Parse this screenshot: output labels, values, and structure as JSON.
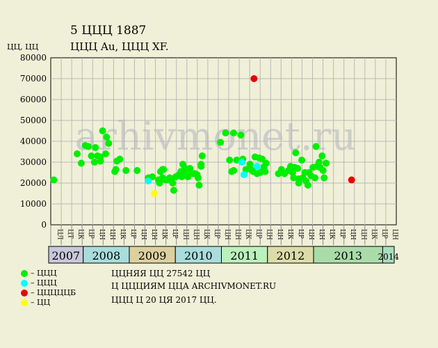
{
  "header": {
    "title": "5 ЦЦЦ 1887",
    "subtitle": "ЦЦЦ  Au, ЦЦЦ  XF."
  },
  "notes": [
    "ЦЦНЯЯ ЦЦ 27542 ЦЦ",
    "Ц ЦЦЦИЯМ ЦЦА ARCHIVMONET.RU",
    "ЦЦЦ Ц 20 ЦЯ 2017 ЦЦ."
  ],
  "legend": [
    {
      "label": "– ЦЦЦ",
      "color": "#00ee00"
    },
    {
      "label": "– ЦЦЦ",
      "color": "#00ffff"
    },
    {
      "label": "– ЦЦЦЦЦБ",
      "color": "#ee0000"
    },
    {
      "label": "– ЦЦ",
      "color": "#ffff00"
    }
  ],
  "watermark": "arhivmonet.ru",
  "chart_data": {
    "type": "scatter",
    "title": "5 ЦЦЦ 1887",
    "ylabel": "ЦЦ, ЦЦ",
    "ylim": [
      0,
      80000
    ],
    "yticks": [
      0,
      10000,
      20000,
      30000,
      40000,
      50000,
      60000,
      70000,
      80000
    ],
    "grid": true,
    "xlim": [
      0,
      34
    ],
    "months": [
      "ЦЛ",
      "ЦТ",
      "ЦК",
      "ЦР",
      "ЦН",
      "ЦН",
      "ЦК",
      "ЦР",
      "ЦН",
      "ЦН",
      "ЦК",
      "ЦР",
      "ЦН",
      "ЦН",
      "ЦК",
      "ЦР",
      "ЦН",
      "ЦН",
      "ЦК",
      "ЦР",
      "ЦН",
      "ЦН",
      "ЦК",
      "ЦР",
      "ЦН",
      "ЦН",
      "ЦК",
      "ЦР",
      "ЦН",
      "ЦН",
      "ЦК",
      "ЦР",
      "ЦН"
    ],
    "years": [
      {
        "label": "2007",
        "start": 0,
        "end": 3,
        "color": "#c8c8dc"
      },
      {
        "label": "2008",
        "start": 3,
        "end": 7,
        "color": "#aadcdc"
      },
      {
        "label": "2009",
        "start": 7,
        "end": 11,
        "color": "#dcd0a0"
      },
      {
        "label": "2010",
        "start": 11,
        "end": 15,
        "color": "#aadcdc"
      },
      {
        "label": "2011",
        "start": 15,
        "end": 19,
        "color": "#bcf0bc"
      },
      {
        "label": "2012",
        "start": 19,
        "end": 23,
        "color": "#dcdcaa"
      },
      {
        "label": "2013",
        "start": 23,
        "end": 29,
        "color": "#aadcaa"
      },
      {
        "label": "2014",
        "start": 29,
        "end": 30,
        "color": "#aadcbe"
      }
    ],
    "series": [
      {
        "color": "#00ee00",
        "points": [
          [
            0.3,
            21500
          ],
          [
            2.6,
            34000
          ],
          [
            3.0,
            29500
          ],
          [
            3.4,
            38000
          ],
          [
            3.7,
            37500
          ],
          [
            4.0,
            33000
          ],
          [
            4.3,
            30000
          ],
          [
            4.4,
            37000
          ],
          [
            4.6,
            33000
          ],
          [
            4.9,
            32500
          ],
          [
            4.9,
            30500
          ],
          [
            5.1,
            45000
          ],
          [
            5.4,
            34000
          ],
          [
            5.5,
            42000
          ],
          [
            5.7,
            39000
          ],
          [
            6.3,
            25500
          ],
          [
            6.4,
            26500
          ],
          [
            6.5,
            30500
          ],
          [
            6.8,
            31500
          ],
          [
            7.4,
            26000
          ],
          [
            8.5,
            26000
          ],
          [
            9.6,
            22500
          ],
          [
            10.0,
            23000
          ],
          [
            10.6,
            21500
          ],
          [
            10.7,
            20000
          ],
          [
            10.8,
            25500
          ],
          [
            11.0,
            22500
          ],
          [
            11.0,
            26500
          ],
          [
            11.1,
            26500
          ],
          [
            11.3,
            21500
          ],
          [
            11.5,
            21500
          ],
          [
            11.7,
            22500
          ],
          [
            11.9,
            21500
          ],
          [
            12.1,
            16500
          ],
          [
            12.0,
            20000
          ],
          [
            12.3,
            23000
          ],
          [
            12.5,
            23500
          ],
          [
            12.7,
            24000
          ],
          [
            12.8,
            25500
          ],
          [
            12.9,
            23000
          ],
          [
            13.0,
            29000
          ],
          [
            13.1,
            26000
          ],
          [
            13.2,
            27000
          ],
          [
            13.3,
            24000
          ],
          [
            13.5,
            23000
          ],
          [
            13.6,
            26000
          ],
          [
            13.7,
            27000
          ],
          [
            13.8,
            25000
          ],
          [
            14.0,
            24500
          ],
          [
            14.2,
            24500
          ],
          [
            14.4,
            24000
          ],
          [
            14.5,
            22500
          ],
          [
            14.6,
            19000
          ],
          [
            14.8,
            29000
          ],
          [
            14.9,
            33000
          ],
          [
            14.8,
            28000
          ],
          [
            16.7,
            39500
          ],
          [
            17.2,
            44000
          ],
          [
            17.6,
            31000
          ],
          [
            17.8,
            25500
          ],
          [
            18.0,
            44000
          ],
          [
            18.0,
            26000
          ],
          [
            18.3,
            31000
          ],
          [
            18.7,
            43000
          ],
          [
            18.9,
            31500
          ],
          [
            19.2,
            26500
          ],
          [
            19.6,
            29000
          ],
          [
            19.7,
            26500
          ],
          [
            19.9,
            25500
          ],
          [
            20.1,
            32500
          ],
          [
            20.3,
            24500
          ],
          [
            20.5,
            32000
          ],
          [
            20.6,
            25000
          ],
          [
            20.8,
            31500
          ],
          [
            20.9,
            26000
          ],
          [
            21.0,
            28000
          ],
          [
            21.2,
            29500
          ],
          [
            21.1,
            25500
          ],
          [
            22.4,
            24500
          ],
          [
            22.7,
            26500
          ],
          [
            23.0,
            24500
          ],
          [
            23.4,
            26000
          ],
          [
            23.6,
            28000
          ],
          [
            23.8,
            25000
          ],
          [
            23.9,
            22500
          ],
          [
            24.0,
            27500
          ],
          [
            24.1,
            34500
          ],
          [
            24.3,
            27000
          ],
          [
            24.4,
            22000
          ],
          [
            24.4,
            20000
          ],
          [
            24.7,
            31000
          ],
          [
            24.8,
            22500
          ],
          [
            25.0,
            25000
          ],
          [
            25.1,
            21000
          ],
          [
            25.3,
            19000
          ],
          [
            25.4,
            25000
          ],
          [
            25.6,
            23500
          ],
          [
            25.8,
            27500
          ],
          [
            26.0,
            22500
          ],
          [
            26.1,
            37500
          ],
          [
            26.2,
            28000
          ],
          [
            26.4,
            30000
          ],
          [
            26.5,
            27500
          ],
          [
            26.7,
            33000
          ],
          [
            26.8,
            26000
          ],
          [
            26.9,
            22500
          ],
          [
            27.1,
            29500
          ]
        ]
      },
      {
        "color": "#00ffff",
        "points": [
          [
            9.6,
            21000
          ],
          [
            18.8,
            30000
          ],
          [
            19.0,
            24000
          ],
          [
            20.3,
            28000
          ]
        ]
      },
      {
        "color": "#ee0000",
        "points": [
          [
            20.0,
            70000
          ],
          [
            29.6,
            21500
          ]
        ]
      },
      {
        "color": "#ffff00",
        "points": [
          [
            10.2,
            15000
          ]
        ]
      }
    ]
  }
}
